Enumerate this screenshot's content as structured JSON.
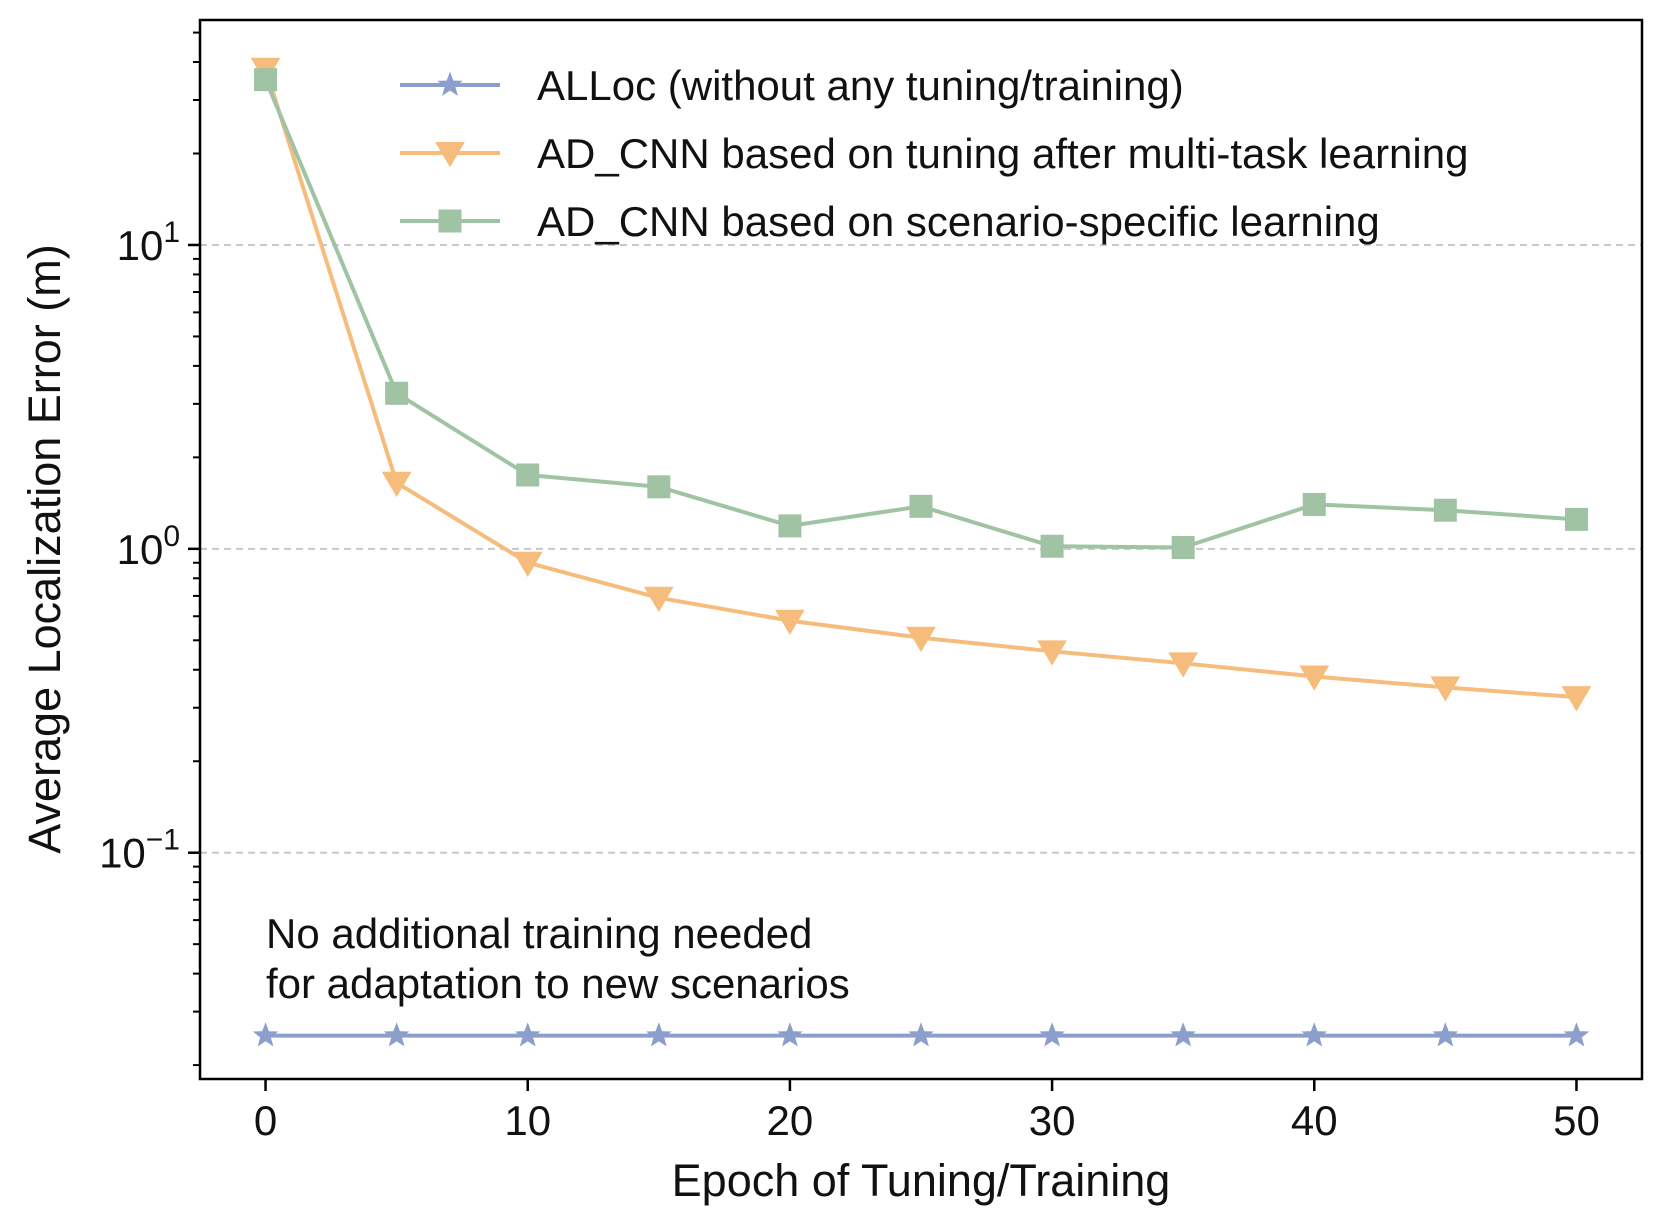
{
  "chart_data": {
    "type": "line",
    "xlabel": "Epoch of Tuning/Training",
    "ylabel": "Average Localization Error (m)",
    "yscale": "log",
    "xlim": [
      -2.5,
      52.5
    ],
    "ylim": [
      0.018,
      55
    ],
    "grid": "horizontal dashed at decades",
    "x": [
      0,
      5,
      10,
      15,
      20,
      25,
      30,
      35,
      40,
      45,
      50
    ],
    "x_ticks": [
      0,
      10,
      20,
      30,
      40,
      50
    ],
    "y_ticks": [
      {
        "value": 0.1,
        "base": "10",
        "exp": "−1"
      },
      {
        "value": 1,
        "base": "10",
        "exp": "0"
      },
      {
        "value": 10,
        "base": "10",
        "exp": "1"
      }
    ],
    "legend_position": "top-right",
    "series": [
      {
        "name": "ALLoc (without any tuning/training)",
        "marker": "star",
        "color": "#8c9fcc",
        "values": [
          0.025,
          0.025,
          0.025,
          0.025,
          0.025,
          0.025,
          0.025,
          0.025,
          0.025,
          0.025,
          0.025
        ]
      },
      {
        "name": "AD_CNN based on tuning after multi-task learning",
        "marker": "triangle-down",
        "color": "#f5bc7c",
        "values": [
          38.0,
          1.65,
          0.9,
          0.69,
          0.58,
          0.51,
          0.46,
          0.42,
          0.38,
          0.35,
          0.325
        ]
      },
      {
        "name": "AD_CNN based on scenario-specific learning",
        "marker": "square",
        "color": "#9fc3a3",
        "values": [
          35.0,
          3.25,
          1.75,
          1.6,
          1.19,
          1.38,
          1.02,
          1.01,
          1.4,
          1.34,
          1.25
        ]
      }
    ],
    "annotation": {
      "lines": [
        "No additional training needed",
        "for adaptation to new scenarios"
      ]
    }
  }
}
